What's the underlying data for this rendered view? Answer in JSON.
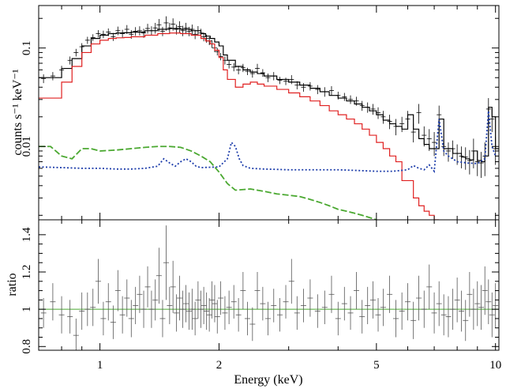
{
  "chart_data": [
    {
      "type": "line",
      "panel": "spectrum",
      "xlabel": "Energy (keV)",
      "ylabel": "counts s⁻¹ keV⁻¹",
      "xscale": "log",
      "yscale": "log",
      "xlim": [
        0.7,
        10.2
      ],
      "ylim": [
        0.0018,
        0.27
      ],
      "xticks": [
        1,
        2,
        5,
        10
      ],
      "xtick_labels": [
        "1",
        "2",
        "5",
        "10"
      ],
      "yticks": [
        0.01,
        0.1
      ],
      "ytick_labels": [
        "0.01",
        "0.1"
      ],
      "grid": false,
      "series": [
        {
          "key": "total-model",
          "color": "#000000",
          "style": "step",
          "x": [
            0.7,
            0.75,
            0.8,
            0.85,
            0.9,
            0.95,
            1.0,
            1.05,
            1.1,
            1.15,
            1.2,
            1.3,
            1.4,
            1.5,
            1.6,
            1.7,
            1.8,
            1.85,
            1.9,
            1.95,
            2.0,
            2.05,
            2.1,
            2.2,
            2.3,
            2.4,
            2.5,
            2.6,
            2.8,
            3.0,
            3.2,
            3.4,
            3.6,
            3.8,
            4.0,
            4.2,
            4.4,
            4.6,
            4.8,
            5.0,
            5.2,
            5.4,
            5.6,
            5.8,
            6.0,
            6.2,
            6.4,
            6.6,
            6.8,
            7.0,
            7.2,
            7.4,
            7.6,
            7.8,
            8.0,
            8.2,
            8.4,
            8.6,
            8.8,
            9.0,
            9.2,
            9.4,
            9.6,
            9.8,
            10.0,
            10.2
          ],
          "y": [
            0.05,
            0.05,
            0.062,
            0.078,
            0.105,
            0.125,
            0.135,
            0.14,
            0.142,
            0.143,
            0.145,
            0.15,
            0.155,
            0.158,
            0.155,
            0.15,
            0.14,
            0.132,
            0.125,
            0.115,
            0.105,
            0.085,
            0.075,
            0.065,
            0.06,
            0.057,
            0.055,
            0.052,
            0.048,
            0.045,
            0.042,
            0.039,
            0.036,
            0.033,
            0.031,
            0.029,
            0.027,
            0.025,
            0.023,
            0.021,
            0.0185,
            0.017,
            0.016,
            0.015,
            0.021,
            0.015,
            0.012,
            0.0105,
            0.0095,
            0.0095,
            0.019,
            0.0095,
            0.0095,
            0.0085,
            0.0085,
            0.0078,
            0.0075,
            0.0073,
            0.009,
            0.0072,
            0.007,
            0.008,
            0.025,
            0.02,
            0.0095,
            0.009
          ]
        },
        {
          "key": "red-component",
          "color": "#e02020",
          "style": "step",
          "x": [
            0.7,
            0.75,
            0.8,
            0.85,
            0.9,
            0.95,
            1.0,
            1.05,
            1.1,
            1.15,
            1.2,
            1.3,
            1.4,
            1.5,
            1.6,
            1.7,
            1.8,
            1.85,
            1.9,
            1.95,
            2.0,
            2.05,
            2.1,
            2.2,
            2.3,
            2.4,
            2.5,
            2.6,
            2.8,
            3.0,
            3.2,
            3.4,
            3.6,
            3.8,
            4.0,
            4.2,
            4.4,
            4.6,
            4.8,
            5.0,
            5.2,
            5.4,
            5.6,
            5.8,
            6.0,
            6.2,
            6.4,
            6.6,
            6.8,
            7.0
          ],
          "y": [
            0.031,
            0.031,
            0.045,
            0.065,
            0.09,
            0.11,
            0.12,
            0.125,
            0.127,
            0.128,
            0.13,
            0.135,
            0.14,
            0.142,
            0.14,
            0.135,
            0.125,
            0.118,
            0.11,
            0.095,
            0.08,
            0.06,
            0.048,
            0.04,
            0.043,
            0.045,
            0.043,
            0.041,
            0.038,
            0.035,
            0.032,
            0.029,
            0.026,
            0.023,
            0.021,
            0.019,
            0.017,
            0.015,
            0.013,
            0.011,
            0.0095,
            0.008,
            0.007,
            0.0045,
            0.0045,
            0.003,
            0.0025,
            0.0022,
            0.002,
            0.0018
          ]
        },
        {
          "key": "green-component",
          "color": "#4aa830",
          "style": "dashed",
          "x": [
            0.7,
            0.75,
            0.8,
            0.85,
            0.9,
            0.95,
            1.0,
            1.1,
            1.2,
            1.3,
            1.4,
            1.5,
            1.6,
            1.7,
            1.8,
            1.9,
            2.0,
            2.1,
            2.2,
            2.4,
            2.6,
            2.8,
            3.0,
            3.2,
            3.4,
            3.6,
            3.8,
            4.0,
            4.2,
            4.4,
            4.6,
            4.8,
            5.0
          ],
          "y": [
            0.01,
            0.01,
            0.008,
            0.0075,
            0.0095,
            0.0095,
            0.009,
            0.0092,
            0.0095,
            0.0098,
            0.01,
            0.01,
            0.0098,
            0.009,
            0.008,
            0.007,
            0.0055,
            0.0042,
            0.0036,
            0.0037,
            0.0035,
            0.0033,
            0.0032,
            0.0031,
            0.0029,
            0.0027,
            0.0025,
            0.0023,
            0.0022,
            0.0021,
            0.002,
            0.0019,
            0.0018
          ]
        },
        {
          "key": "blue-component",
          "color": "#1c3caa",
          "style": "dotted",
          "x": [
            0.7,
            0.8,
            0.9,
            1.0,
            1.1,
            1.2,
            1.3,
            1.4,
            1.45,
            1.5,
            1.55,
            1.6,
            1.65,
            1.7,
            1.75,
            1.8,
            2.0,
            2.1,
            2.15,
            2.2,
            2.25,
            2.3,
            2.4,
            2.6,
            3.0,
            3.5,
            4.0,
            4.5,
            5.0,
            5.5,
            6.0,
            6.2,
            6.4,
            6.6,
            6.8,
            7.0,
            7.2,
            7.4,
            7.6,
            8.0,
            8.5,
            9.0,
            9.4,
            9.6,
            9.8,
            10.0
          ],
          "y": [
            0.0062,
            0.0061,
            0.006,
            0.006,
            0.0059,
            0.0059,
            0.006,
            0.0063,
            0.0075,
            0.0068,
            0.0063,
            0.007,
            0.0075,
            0.007,
            0.0063,
            0.0061,
            0.0062,
            0.0075,
            0.011,
            0.01,
            0.0075,
            0.0064,
            0.006,
            0.0059,
            0.0058,
            0.0058,
            0.0058,
            0.0057,
            0.0056,
            0.0056,
            0.0058,
            0.0064,
            0.006,
            0.0058,
            0.0065,
            0.0056,
            0.019,
            0.009,
            0.008,
            0.007,
            0.0068,
            0.0067,
            0.0075,
            0.023,
            0.01,
            0.008
          ]
        }
      ],
      "data_points": {
        "key": "data-crosses",
        "color": "#000000",
        "x": [
          0.72,
          0.76,
          0.8,
          0.84,
          0.87,
          0.9,
          0.93,
          0.96,
          0.99,
          1.02,
          1.05,
          1.08,
          1.11,
          1.14,
          1.17,
          1.2,
          1.23,
          1.26,
          1.29,
          1.32,
          1.35,
          1.38,
          1.41,
          1.44,
          1.47,
          1.5,
          1.53,
          1.56,
          1.59,
          1.62,
          1.65,
          1.68,
          1.71,
          1.74,
          1.77,
          1.8,
          1.83,
          1.86,
          1.89,
          1.92,
          1.95,
          1.98,
          2.02,
          2.07,
          2.12,
          2.18,
          2.24,
          2.3,
          2.36,
          2.43,
          2.5,
          2.58,
          2.66,
          2.75,
          2.85,
          2.95,
          3.05,
          3.15,
          3.27,
          3.4,
          3.55,
          3.7,
          3.85,
          4.0,
          4.15,
          4.3,
          4.45,
          4.6,
          4.75,
          4.9,
          5.05,
          5.2,
          5.4,
          5.6,
          5.8,
          6.0,
          6.2,
          6.4,
          6.6,
          6.8,
          7.0,
          7.2,
          7.4,
          7.6,
          7.8,
          8.0,
          8.2,
          8.4,
          8.6,
          8.8,
          9.0,
          9.2,
          9.4,
          9.6,
          9.8,
          10.0
        ],
        "y": [
          0.049,
          0.052,
          0.06,
          0.075,
          0.09,
          0.103,
          0.12,
          0.128,
          0.14,
          0.138,
          0.145,
          0.13,
          0.15,
          0.14,
          0.155,
          0.138,
          0.148,
          0.15,
          0.142,
          0.158,
          0.15,
          0.16,
          0.172,
          0.148,
          0.18,
          0.16,
          0.175,
          0.155,
          0.165,
          0.15,
          0.16,
          0.148,
          0.155,
          0.138,
          0.15,
          0.142,
          0.13,
          0.125,
          0.118,
          0.11,
          0.1,
          0.092,
          0.082,
          0.075,
          0.068,
          0.064,
          0.06,
          0.063,
          0.058,
          0.055,
          0.062,
          0.056,
          0.05,
          0.052,
          0.047,
          0.046,
          0.048,
          0.042,
          0.04,
          0.041,
          0.038,
          0.036,
          0.037,
          0.033,
          0.032,
          0.03,
          0.029,
          0.026,
          0.025,
          0.024,
          0.022,
          0.02,
          0.018,
          0.016,
          0.017,
          0.019,
          0.014,
          0.022,
          0.013,
          0.012,
          0.011,
          0.021,
          0.01,
          0.009,
          0.0095,
          0.0085,
          0.008,
          0.0078,
          0.0072,
          0.009,
          0.007,
          0.0068,
          0.008,
          0.024,
          0.019,
          0.0095
        ],
        "yerr": [
          0.005,
          0.005,
          0.006,
          0.007,
          0.008,
          0.009,
          0.01,
          0.01,
          0.012,
          0.012,
          0.013,
          0.012,
          0.015,
          0.013,
          0.016,
          0.014,
          0.015,
          0.016,
          0.015,
          0.018,
          0.016,
          0.02,
          0.025,
          0.016,
          0.03,
          0.02,
          0.025,
          0.018,
          0.022,
          0.018,
          0.02,
          0.016,
          0.018,
          0.015,
          0.017,
          0.015,
          0.013,
          0.012,
          0.011,
          0.01,
          0.009,
          0.008,
          0.007,
          0.007,
          0.006,
          0.006,
          0.006,
          0.006,
          0.005,
          0.005,
          0.007,
          0.005,
          0.005,
          0.005,
          0.004,
          0.004,
          0.005,
          0.004,
          0.004,
          0.004,
          0.004,
          0.004,
          0.004,
          0.003,
          0.003,
          0.003,
          0.003,
          0.003,
          0.003,
          0.003,
          0.003,
          0.003,
          0.003,
          0.003,
          0.003,
          0.004,
          0.003,
          0.005,
          0.003,
          0.003,
          0.003,
          0.005,
          0.002,
          0.002,
          0.002,
          0.002,
          0.002,
          0.002,
          0.002,
          0.003,
          0.002,
          0.002,
          0.003,
          0.007,
          0.005,
          0.003
        ]
      }
    },
    {
      "type": "scatter",
      "panel": "residuals",
      "xlabel": "Energy (keV)",
      "ylabel": "ratio",
      "xscale": "log",
      "xlim": [
        0.7,
        10.2
      ],
      "ylim": [
        0.78,
        1.48
      ],
      "xticks": [
        1,
        2,
        5,
        10
      ],
      "xtick_labels": [
        "1",
        "2",
        "5",
        "10"
      ],
      "yticks": [
        0.8,
        1.0,
        1.2,
        1.4
      ],
      "ytick_labels": [
        "0.8",
        "1",
        "1.2",
        "1.4"
      ],
      "grid": false,
      "reference_line": {
        "y": 1.0,
        "color": "#4aa830"
      },
      "points": {
        "color": "#555555",
        "x": [
          0.72,
          0.76,
          0.8,
          0.84,
          0.87,
          0.9,
          0.93,
          0.96,
          0.99,
          1.02,
          1.05,
          1.08,
          1.11,
          1.14,
          1.17,
          1.2,
          1.23,
          1.26,
          1.29,
          1.32,
          1.35,
          1.38,
          1.41,
          1.44,
          1.47,
          1.5,
          1.53,
          1.56,
          1.59,
          1.62,
          1.65,
          1.68,
          1.71,
          1.74,
          1.77,
          1.8,
          1.83,
          1.86,
          1.89,
          1.92,
          1.95,
          1.98,
          2.02,
          2.07,
          2.12,
          2.18,
          2.24,
          2.3,
          2.36,
          2.43,
          2.5,
          2.58,
          2.66,
          2.75,
          2.85,
          2.95,
          3.05,
          3.15,
          3.27,
          3.4,
          3.55,
          3.7,
          3.85,
          4.0,
          4.15,
          4.3,
          4.45,
          4.6,
          4.75,
          4.9,
          5.05,
          5.2,
          5.4,
          5.6,
          5.8,
          6.0,
          6.2,
          6.4,
          6.6,
          6.8,
          7.0,
          7.2,
          7.4,
          7.6,
          7.8,
          8.0,
          8.2,
          8.4,
          8.6,
          8.8,
          9.0,
          9.2,
          9.4,
          9.6,
          9.8,
          10.0
        ],
        "y": [
          0.98,
          1.04,
          0.97,
          0.96,
          0.86,
          0.99,
          1.0,
          1.01,
          1.15,
          0.95,
          1.04,
          0.93,
          1.1,
          0.97,
          1.06,
          0.95,
          1.02,
          1.08,
          1.0,
          1.12,
          1.0,
          1.05,
          1.18,
          0.95,
          1.25,
          1.02,
          1.12,
          0.98,
          1.06,
          1.0,
          1.03,
          0.99,
          1.0,
          0.95,
          1.05,
          1.0,
          1.02,
          0.99,
          0.97,
          1.05,
          1.03,
          0.96,
          1.06,
          0.98,
          1.01,
          1.04,
          0.97,
          1.1,
          0.95,
          0.92,
          1.1,
          1.03,
          0.95,
          1.02,
          0.97,
          1.04,
          1.15,
          0.98,
          1.02,
          1.06,
          0.99,
          1.01,
          1.08,
          0.95,
          1.03,
          0.98,
          1.1,
          0.96,
          1.02,
          1.05,
          0.97,
          1.01,
          1.08,
          0.95,
          0.99,
          1.04,
          0.94,
          1.06,
          1.0,
          1.12,
          0.98,
          1.03,
          0.97,
          0.96,
          1.0,
          1.05,
          0.99,
          0.94,
          1.08,
          1.0,
          1.03,
          1.01,
          1.1,
          1.04,
          0.97,
          1.02
        ],
        "yerr": [
          0.08,
          0.1,
          0.1,
          0.09,
          0.09,
          0.1,
          0.09,
          0.1,
          0.12,
          0.09,
          0.1,
          0.09,
          0.11,
          0.1,
          0.1,
          0.1,
          0.1,
          0.1,
          0.1,
          0.11,
          0.1,
          0.11,
          0.15,
          0.1,
          0.2,
          0.1,
          0.14,
          0.1,
          0.12,
          0.1,
          0.1,
          0.1,
          0.11,
          0.09,
          0.1,
          0.1,
          0.1,
          0.1,
          0.09,
          0.1,
          0.1,
          0.09,
          0.09,
          0.09,
          0.09,
          0.09,
          0.09,
          0.1,
          0.09,
          0.09,
          0.1,
          0.09,
          0.09,
          0.09,
          0.09,
          0.09,
          0.12,
          0.09,
          0.09,
          0.1,
          0.09,
          0.09,
          0.1,
          0.09,
          0.09,
          0.09,
          0.1,
          0.09,
          0.1,
          0.1,
          0.09,
          0.1,
          0.1,
          0.1,
          0.1,
          0.1,
          0.1,
          0.12,
          0.1,
          0.12,
          0.11,
          0.12,
          0.11,
          0.11,
          0.11,
          0.12,
          0.11,
          0.11,
          0.12,
          0.11,
          0.12,
          0.12,
          0.13,
          0.12,
          0.12,
          0.12
        ]
      }
    }
  ]
}
